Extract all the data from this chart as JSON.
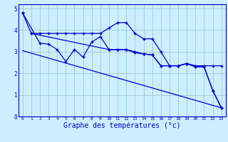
{
  "background_color": "#cceeff",
  "line_color": "#0000cc",
  "grid_color": "#99cccc",
  "xlabel": "Graphe des températures (°c)",
  "xlabel_fontsize": 7,
  "xlim": [
    -0.5,
    23.5
  ],
  "ylim": [
    0,
    5.2
  ],
  "yticks": [
    0,
    1,
    2,
    3,
    4,
    5
  ],
  "xtick_labels": [
    "0",
    "1",
    "2",
    "3",
    "4",
    "5",
    "6",
    "7",
    "8",
    "9",
    "10",
    "11",
    "12",
    "13",
    "14",
    "15",
    "16",
    "17",
    "18",
    "19",
    "20",
    "21",
    "22",
    "23"
  ],
  "line1_x": [
    0,
    1,
    2,
    3,
    4,
    5,
    6,
    7,
    8,
    9,
    10,
    11,
    12,
    13,
    14,
    15,
    16,
    17,
    18,
    19,
    20,
    21,
    22,
    23
  ],
  "line1_y": [
    4.8,
    3.85,
    3.85,
    3.85,
    3.85,
    3.85,
    3.85,
    3.85,
    3.85,
    3.85,
    4.1,
    4.35,
    4.35,
    3.85,
    3.6,
    3.6,
    3.0,
    2.35,
    2.35,
    2.45,
    2.35,
    2.35,
    2.35,
    2.35
  ],
  "line2_x": [
    0,
    2,
    3,
    4,
    5,
    6,
    7,
    8,
    9,
    10,
    11,
    12,
    13,
    14,
    15,
    16,
    17,
    18,
    19,
    20,
    21,
    22,
    23
  ],
  "line2_y": [
    4.8,
    3.4,
    3.35,
    3.1,
    2.55,
    3.1,
    2.75,
    3.45,
    3.7,
    3.1,
    3.1,
    3.1,
    3.0,
    2.9,
    2.85,
    2.35,
    2.35,
    2.35,
    2.45,
    2.3,
    2.3,
    1.2,
    0.4
  ],
  "line3_x": [
    1,
    10,
    11,
    12,
    13,
    14,
    15,
    16,
    17,
    18,
    19,
    20,
    21,
    22,
    23
  ],
  "line3_y": [
    3.85,
    3.1,
    3.1,
    3.1,
    2.95,
    2.9,
    2.85,
    2.35,
    2.35,
    2.35,
    2.45,
    2.3,
    2.3,
    1.2,
    0.4
  ],
  "line4_x": [
    0,
    23
  ],
  "line4_y": [
    3.05,
    0.4
  ]
}
